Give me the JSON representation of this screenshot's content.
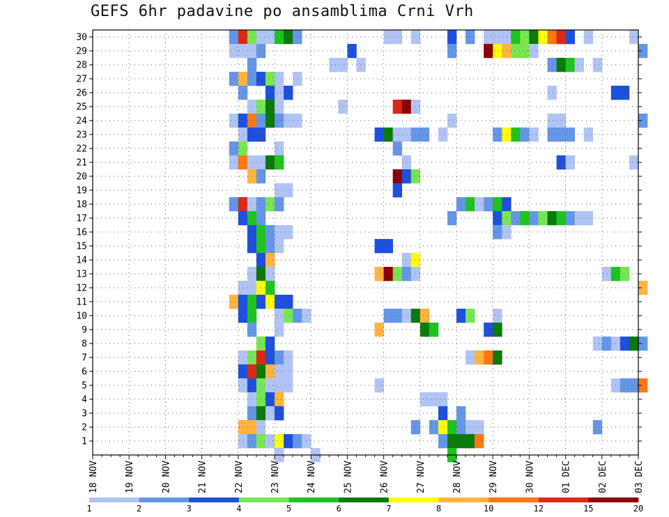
{
  "chart_data": {
    "type": "heatmap",
    "title": "GEFS 6hr padavine po ansamblima Crni Vrh",
    "xlabel": "",
    "ylabel": "",
    "x_ticks": [
      "18 NOV",
      "19 NOV",
      "20 NOV",
      "21 NOV",
      "22 NOV",
      "23 NOV",
      "24 NOV",
      "25 NOV",
      "26 NOV",
      "27 NOV",
      "28 NOV",
      "29 NOV",
      "30 NOV",
      "01 DEC",
      "02 DEC",
      "03 DEC"
    ],
    "x_range": [
      "18 NOV 00Z",
      "03 DEC 00Z"
    ],
    "time_step": "6hr",
    "y_ticks": [
      1,
      2,
      3,
      4,
      5,
      6,
      7,
      8,
      9,
      10,
      11,
      12,
      13,
      14,
      15,
      16,
      17,
      18,
      19,
      20,
      21,
      22,
      23,
      24,
      25,
      26,
      27,
      28,
      29,
      30
    ],
    "y_range": [
      0,
      30
    ],
    "grid": true,
    "legend_position": "bottom",
    "colorbar": {
      "labels": [
        "1",
        "2",
        "3",
        "4",
        "5",
        "6",
        "7",
        "8",
        "10",
        "12",
        "15",
        "20"
      ],
      "colors": [
        "#b0c4f4",
        "#6496e8",
        "#1e50dc",
        "#78e650",
        "#1ec31e",
        "#0a7a0a",
        "#ffff00",
        "#ffb440",
        "#ff7814",
        "#dc2814",
        "#8c0000"
      ]
    },
    "cells_note": "each cell: [member, day index, 6hr step, bin 1-11]",
    "cells": [
      [
        30,
        3,
        3,
        2
      ],
      [
        30,
        4,
        0,
        10
      ],
      [
        30,
        4,
        1,
        4
      ],
      [
        30,
        4,
        2,
        1
      ],
      [
        30,
        4,
        3,
        1
      ],
      [
        30,
        5,
        0,
        5
      ],
      [
        30,
        5,
        1,
        6
      ],
      [
        30,
        5,
        2,
        2
      ],
      [
        30,
        8,
        0,
        1
      ],
      [
        30,
        8,
        1,
        1
      ],
      [
        30,
        8,
        3,
        1
      ],
      [
        30,
        9,
        3,
        3
      ],
      [
        30,
        10,
        1,
        2
      ],
      [
        30,
        10,
        3,
        1
      ],
      [
        30,
        11,
        0,
        1
      ],
      [
        30,
        11,
        1,
        1
      ],
      [
        30,
        11,
        2,
        5
      ],
      [
        30,
        11,
        3,
        4
      ],
      [
        30,
        12,
        0,
        6
      ],
      [
        30,
        12,
        1,
        7
      ],
      [
        30,
        12,
        2,
        9
      ],
      [
        30,
        12,
        3,
        10
      ],
      [
        30,
        13,
        0,
        3
      ],
      [
        30,
        13,
        2,
        1
      ],
      [
        30,
        14,
        3,
        1
      ],
      [
        29,
        3,
        3,
        1
      ],
      [
        29,
        4,
        0,
        1
      ],
      [
        29,
        4,
        1,
        1
      ],
      [
        29,
        4,
        2,
        2
      ],
      [
        29,
        7,
        0,
        3
      ],
      [
        29,
        9,
        3,
        2
      ],
      [
        29,
        10,
        3,
        11
      ],
      [
        29,
        11,
        0,
        7
      ],
      [
        29,
        11,
        1,
        8
      ],
      [
        29,
        11,
        2,
        4
      ],
      [
        29,
        11,
        3,
        4
      ],
      [
        29,
        12,
        0,
        1
      ],
      [
        29,
        15,
        0,
        2
      ],
      [
        28,
        4,
        1,
        2
      ],
      [
        28,
        6,
        2,
        1
      ],
      [
        28,
        6,
        3,
        1
      ],
      [
        28,
        7,
        1,
        1
      ],
      [
        28,
        12,
        2,
        2
      ],
      [
        28,
        12,
        3,
        6
      ],
      [
        28,
        13,
        0,
        5
      ],
      [
        28,
        13,
        1,
        1
      ],
      [
        28,
        13,
        3,
        1
      ],
      [
        27,
        3,
        3,
        2
      ],
      [
        27,
        4,
        0,
        8
      ],
      [
        27,
        4,
        1,
        2
      ],
      [
        27,
        4,
        2,
        3
      ],
      [
        27,
        4,
        3,
        4
      ],
      [
        27,
        5,
        0,
        1
      ],
      [
        27,
        5,
        2,
        1
      ],
      [
        26,
        4,
        0,
        2
      ],
      [
        26,
        4,
        3,
        3
      ],
      [
        26,
        5,
        0,
        1
      ],
      [
        26,
        5,
        1,
        3
      ],
      [
        26,
        12,
        2,
        1
      ],
      [
        26,
        14,
        1,
        3
      ],
      [
        26,
        14,
        2,
        3
      ],
      [
        25,
        4,
        1,
        1
      ],
      [
        25,
        4,
        2,
        4
      ],
      [
        25,
        4,
        3,
        6
      ],
      [
        25,
        5,
        0,
        1
      ],
      [
        25,
        6,
        3,
        1
      ],
      [
        25,
        8,
        1,
        10
      ],
      [
        25,
        8,
        2,
        11
      ],
      [
        25,
        8,
        3,
        1
      ],
      [
        24,
        3,
        3,
        1
      ],
      [
        24,
        4,
        0,
        3
      ],
      [
        24,
        4,
        1,
        9
      ],
      [
        24,
        4,
        2,
        2
      ],
      [
        24,
        4,
        3,
        6
      ],
      [
        24,
        5,
        0,
        2
      ],
      [
        24,
        5,
        1,
        1
      ],
      [
        24,
        5,
        2,
        1
      ],
      [
        24,
        9,
        3,
        1
      ],
      [
        24,
        12,
        2,
        1
      ],
      [
        24,
        12,
        3,
        1
      ],
      [
        24,
        15,
        0,
        2
      ],
      [
        23,
        4,
        0,
        1
      ],
      [
        23,
        4,
        1,
        3
      ],
      [
        23,
        4,
        2,
        3
      ],
      [
        23,
        7,
        3,
        3
      ],
      [
        23,
        8,
        0,
        6
      ],
      [
        23,
        8,
        1,
        1
      ],
      [
        23,
        8,
        2,
        1
      ],
      [
        23,
        8,
        3,
        2
      ],
      [
        23,
        9,
        0,
        2
      ],
      [
        23,
        9,
        2,
        1
      ],
      [
        23,
        11,
        0,
        2
      ],
      [
        23,
        11,
        1,
        7
      ],
      [
        23,
        11,
        2,
        5
      ],
      [
        23,
        11,
        3,
        2
      ],
      [
        23,
        12,
        0,
        1
      ],
      [
        23,
        12,
        2,
        2
      ],
      [
        23,
        12,
        3,
        2
      ],
      [
        23,
        13,
        0,
        2
      ],
      [
        23,
        13,
        2,
        1
      ],
      [
        22,
        3,
        3,
        2
      ],
      [
        22,
        4,
        0,
        4
      ],
      [
        22,
        5,
        0,
        1
      ],
      [
        22,
        8,
        1,
        2
      ],
      [
        21,
        3,
        3,
        1
      ],
      [
        21,
        4,
        0,
        9
      ],
      [
        21,
        4,
        1,
        1
      ],
      [
        21,
        4,
        2,
        1
      ],
      [
        21,
        4,
        3,
        6
      ],
      [
        21,
        5,
        0,
        5
      ],
      [
        21,
        8,
        2,
        1
      ],
      [
        21,
        12,
        3,
        3
      ],
      [
        21,
        13,
        0,
        1
      ],
      [
        21,
        14,
        3,
        1
      ],
      [
        20,
        4,
        1,
        8
      ],
      [
        20,
        4,
        2,
        2
      ],
      [
        20,
        8,
        1,
        11
      ],
      [
        20,
        8,
        2,
        3
      ],
      [
        20,
        8,
        3,
        4
      ],
      [
        19,
        5,
        0,
        1
      ],
      [
        19,
        5,
        1,
        1
      ],
      [
        19,
        8,
        1,
        3
      ],
      [
        18,
        3,
        3,
        2
      ],
      [
        18,
        4,
        0,
        10
      ],
      [
        18,
        4,
        1,
        1
      ],
      [
        18,
        4,
        2,
        2
      ],
      [
        18,
        4,
        3,
        4
      ],
      [
        18,
        5,
        0,
        2
      ],
      [
        18,
        10,
        0,
        2
      ],
      [
        18,
        10,
        1,
        5
      ],
      [
        18,
        10,
        2,
        1
      ],
      [
        18,
        10,
        3,
        2
      ],
      [
        18,
        11,
        0,
        5
      ],
      [
        18,
        11,
        1,
        3
      ],
      [
        17,
        4,
        0,
        3
      ],
      [
        17,
        4,
        1,
        5
      ],
      [
        17,
        4,
        2,
        2
      ],
      [
        17,
        9,
        3,
        2
      ],
      [
        17,
        11,
        0,
        3
      ],
      [
        17,
        11,
        1,
        4
      ],
      [
        17,
        11,
        2,
        2
      ],
      [
        17,
        11,
        3,
        5
      ],
      [
        17,
        12,
        0,
        2
      ],
      [
        17,
        12,
        1,
        4
      ],
      [
        17,
        12,
        2,
        6
      ],
      [
        17,
        12,
        3,
        5
      ],
      [
        17,
        13,
        0,
        2
      ],
      [
        17,
        13,
        1,
        1
      ],
      [
        17,
        13,
        2,
        1
      ],
      [
        16,
        4,
        1,
        3
      ],
      [
        16,
        4,
        2,
        5
      ],
      [
        16,
        4,
        3,
        2
      ],
      [
        16,
        5,
        0,
        1
      ],
      [
        16,
        5,
        1,
        1
      ],
      [
        16,
        11,
        0,
        2
      ],
      [
        16,
        11,
        1,
        1
      ],
      [
        15,
        4,
        1,
        3
      ],
      [
        15,
        4,
        2,
        5
      ],
      [
        15,
        4,
        3,
        2
      ],
      [
        15,
        5,
        0,
        1
      ],
      [
        15,
        7,
        3,
        3
      ],
      [
        15,
        8,
        0,
        3
      ],
      [
        14,
        4,
        2,
        3
      ],
      [
        14,
        4,
        3,
        8
      ],
      [
        14,
        8,
        2,
        1
      ],
      [
        14,
        8,
        3,
        7
      ],
      [
        13,
        4,
        1,
        1
      ],
      [
        13,
        4,
        2,
        6
      ],
      [
        13,
        4,
        3,
        1
      ],
      [
        13,
        7,
        3,
        8
      ],
      [
        13,
        8,
        0,
        11
      ],
      [
        13,
        8,
        1,
        4
      ],
      [
        13,
        8,
        2,
        2
      ],
      [
        13,
        8,
        3,
        1
      ],
      [
        13,
        14,
        0,
        1
      ],
      [
        13,
        14,
        1,
        5
      ],
      [
        13,
        14,
        2,
        4
      ],
      [
        12,
        4,
        0,
        1
      ],
      [
        12,
        4,
        1,
        1
      ],
      [
        12,
        4,
        2,
        7
      ],
      [
        12,
        4,
        3,
        5
      ],
      [
        12,
        15,
        0,
        8
      ],
      [
        11,
        3,
        3,
        8
      ],
      [
        11,
        4,
        0,
        3
      ],
      [
        11,
        4,
        1,
        5
      ],
      [
        11,
        4,
        2,
        3
      ],
      [
        11,
        4,
        3,
        7
      ],
      [
        11,
        5,
        0,
        3
      ],
      [
        11,
        5,
        1,
        3
      ],
      [
        10,
        4,
        0,
        3
      ],
      [
        10,
        4,
        1,
        5
      ],
      [
        10,
        5,
        0,
        1
      ],
      [
        10,
        5,
        1,
        4
      ],
      [
        10,
        5,
        2,
        2
      ],
      [
        10,
        5,
        3,
        1
      ],
      [
        10,
        8,
        0,
        2
      ],
      [
        10,
        8,
        1,
        2
      ],
      [
        10,
        8,
        2,
        1
      ],
      [
        10,
        8,
        3,
        6
      ],
      [
        10,
        9,
        0,
        8
      ],
      [
        10,
        10,
        0,
        3
      ],
      [
        10,
        10,
        1,
        4
      ],
      [
        10,
        11,
        0,
        1
      ],
      [
        9,
        4,
        1,
        2
      ],
      [
        9,
        5,
        0,
        1
      ],
      [
        9,
        7,
        3,
        8
      ],
      [
        9,
        9,
        0,
        6
      ],
      [
        9,
        9,
        1,
        5
      ],
      [
        9,
        10,
        3,
        3
      ],
      [
        9,
        11,
        0,
        6
      ],
      [
        8,
        4,
        2,
        4
      ],
      [
        8,
        4,
        3,
        3
      ],
      [
        8,
        13,
        3,
        1
      ],
      [
        8,
        14,
        0,
        2
      ],
      [
        8,
        14,
        1,
        1
      ],
      [
        8,
        14,
        2,
        3
      ],
      [
        8,
        14,
        3,
        6
      ],
      [
        8,
        15,
        0,
        2
      ],
      [
        7,
        4,
        0,
        1
      ],
      [
        7,
        4,
        1,
        4
      ],
      [
        7,
        4,
        2,
        10
      ],
      [
        7,
        4,
        3,
        3
      ],
      [
        7,
        5,
        0,
        2
      ],
      [
        7,
        5,
        1,
        1
      ],
      [
        7,
        10,
        1,
        1
      ],
      [
        7,
        10,
        2,
        8
      ],
      [
        7,
        10,
        3,
        9
      ],
      [
        7,
        11,
        0,
        6
      ],
      [
        6,
        4,
        0,
        3
      ],
      [
        6,
        4,
        1,
        10
      ],
      [
        6,
        4,
        2,
        6
      ],
      [
        6,
        4,
        3,
        8
      ],
      [
        6,
        5,
        0,
        1
      ],
      [
        6,
        5,
        1,
        1
      ],
      [
        5,
        4,
        0,
        1
      ],
      [
        5,
        4,
        1,
        3
      ],
      [
        5,
        4,
        2,
        4
      ],
      [
        5,
        4,
        3,
        1
      ],
      [
        5,
        5,
        0,
        1
      ],
      [
        5,
        5,
        1,
        1
      ],
      [
        5,
        7,
        3,
        1
      ],
      [
        5,
        14,
        1,
        1
      ],
      [
        5,
        14,
        2,
        2
      ],
      [
        5,
        14,
        3,
        2
      ],
      [
        5,
        15,
        0,
        9
      ],
      [
        4,
        4,
        1,
        1
      ],
      [
        4,
        4,
        2,
        4
      ],
      [
        4,
        4,
        3,
        3
      ],
      [
        4,
        5,
        0,
        8
      ],
      [
        4,
        9,
        0,
        1
      ],
      [
        4,
        9,
        1,
        1
      ],
      [
        4,
        9,
        2,
        1
      ],
      [
        3,
        4,
        1,
        2
      ],
      [
        3,
        4,
        2,
        6
      ],
      [
        3,
        4,
        3,
        1
      ],
      [
        3,
        5,
        0,
        3
      ],
      [
        3,
        9,
        2,
        3
      ],
      [
        3,
        10,
        0,
        2
      ],
      [
        2,
        4,
        0,
        8
      ],
      [
        2,
        4,
        1,
        8
      ],
      [
        2,
        4,
        2,
        1
      ],
      [
        2,
        8,
        3,
        2
      ],
      [
        2,
        9,
        1,
        2
      ],
      [
        2,
        9,
        2,
        7
      ],
      [
        2,
        9,
        3,
        5
      ],
      [
        2,
        10,
        0,
        2
      ],
      [
        2,
        10,
        1,
        1
      ],
      [
        2,
        10,
        2,
        1
      ],
      [
        2,
        13,
        3,
        2
      ],
      [
        1,
        4,
        0,
        1
      ],
      [
        1,
        4,
        1,
        2
      ],
      [
        1,
        4,
        2,
        4
      ],
      [
        1,
        4,
        3,
        1
      ],
      [
        1,
        5,
        0,
        7
      ],
      [
        1,
        5,
        1,
        3
      ],
      [
        1,
        5,
        2,
        2
      ],
      [
        1,
        5,
        3,
        1
      ],
      [
        1,
        9,
        2,
        2
      ],
      [
        1,
        9,
        3,
        6
      ],
      [
        1,
        10,
        0,
        6
      ],
      [
        1,
        10,
        1,
        6
      ],
      [
        1,
        10,
        2,
        9
      ],
      [
        0,
        5,
        0,
        1
      ],
      [
        0,
        6,
        0,
        1
      ],
      [
        0,
        9,
        3,
        5
      ]
    ]
  }
}
